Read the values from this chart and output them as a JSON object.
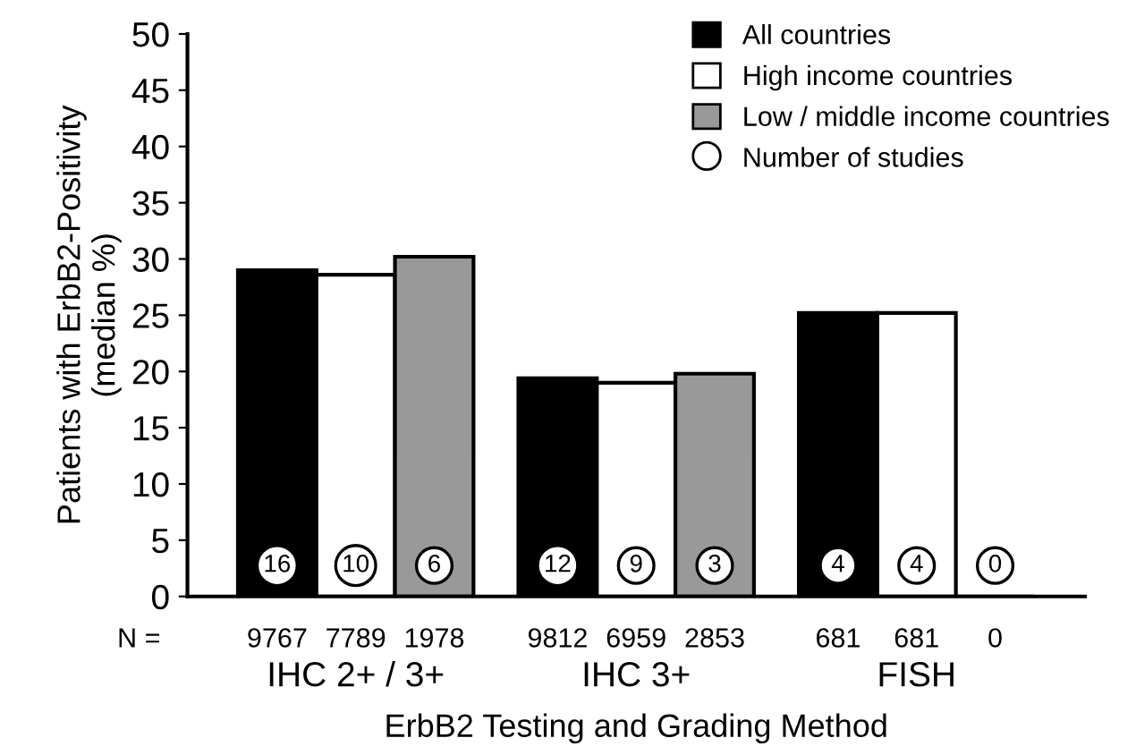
{
  "chart_data": {
    "type": "bar",
    "xlabel": "ErbB2 Testing and Grading Method",
    "ylabel": "Patients with ErbB2-Positivity\n(median %)",
    "categories": [
      "IHC 2+ / 3+",
      "IHC 3+",
      "FISH"
    ],
    "series": [
      {
        "name": "All countries",
        "color": "#000000",
        "values": [
          29.0,
          19.4,
          25.2
        ]
      },
      {
        "name": "High income countries",
        "color": "#ffffff",
        "values": [
          28.6,
          19.0,
          25.2
        ]
      },
      {
        "name": "Low / middle income countries",
        "color": "#999999",
        "values": [
          30.2,
          19.8,
          0
        ]
      }
    ],
    "annotations": [
      "Number of studies",
      "N =",
      "9767",
      "7789",
      "1978",
      "9812",
      "6959",
      "2853",
      "681",
      "681",
      "0",
      "16",
      "10",
      "6",
      "12",
      "9",
      "3",
      "4",
      "4",
      "0"
    ],
    "ylim": [
      0,
      50
    ],
    "yticks": [
      0,
      5,
      10,
      15,
      20,
      25,
      30,
      35,
      40,
      45,
      50
    ],
    "grid": false,
    "legend": "top right"
  }
}
